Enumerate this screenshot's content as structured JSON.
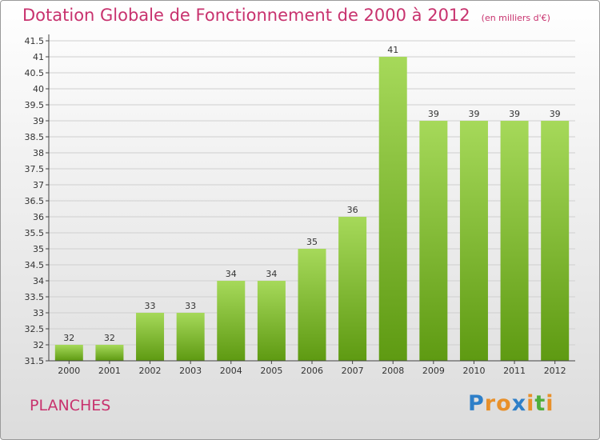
{
  "title": {
    "main": "Dotation Globale de Fonctionnement de 2000 à 2012",
    "unit": "(en milliers d'€)"
  },
  "commune": "PLANCHES",
  "logo": {
    "text": "Proxiti",
    "letters": [
      {
        "ch": "P",
        "color": "#2e7fc8"
      },
      {
        "ch": "r",
        "color": "#e8902a"
      },
      {
        "ch": "o",
        "color": "#e8902a"
      },
      {
        "ch": "x",
        "color": "#2e7fc8"
      },
      {
        "ch": "i",
        "color": "#e8902a"
      },
      {
        "ch": "t",
        "color": "#4fae3a"
      },
      {
        "ch": "i",
        "color": "#e8902a"
      }
    ]
  },
  "colors": {
    "title": "#c8326e",
    "bar_top": "#a6d95a",
    "bar_bottom": "#5e9a12",
    "grid": "#cfcfcf",
    "axis": "#444444",
    "text": "#333333"
  },
  "chart_data": {
    "type": "bar",
    "categories": [
      "2000",
      "2001",
      "2002",
      "2003",
      "2004",
      "2005",
      "2006",
      "2007",
      "2008",
      "2009",
      "2010",
      "2011",
      "2012"
    ],
    "values": [
      32,
      32,
      33,
      33,
      34,
      34,
      35,
      36,
      41,
      39,
      39,
      39,
      39
    ],
    "data_labels": [
      "32",
      "32",
      "33",
      "33",
      "34",
      "34",
      "35",
      "36",
      "41",
      "39",
      "39",
      "39",
      "39"
    ],
    "yticks": [
      "31.5",
      "32",
      "32.5",
      "33",
      "33.5",
      "34",
      "34.5",
      "35",
      "35.5",
      "36",
      "36.5",
      "37",
      "37.5",
      "38",
      "38.5",
      "39",
      "39.5",
      "40",
      "40.5",
      "41",
      "41.5"
    ],
    "ylim": [
      31.5,
      41.5
    ],
    "grid": true,
    "xlabel": "",
    "ylabel": ""
  }
}
